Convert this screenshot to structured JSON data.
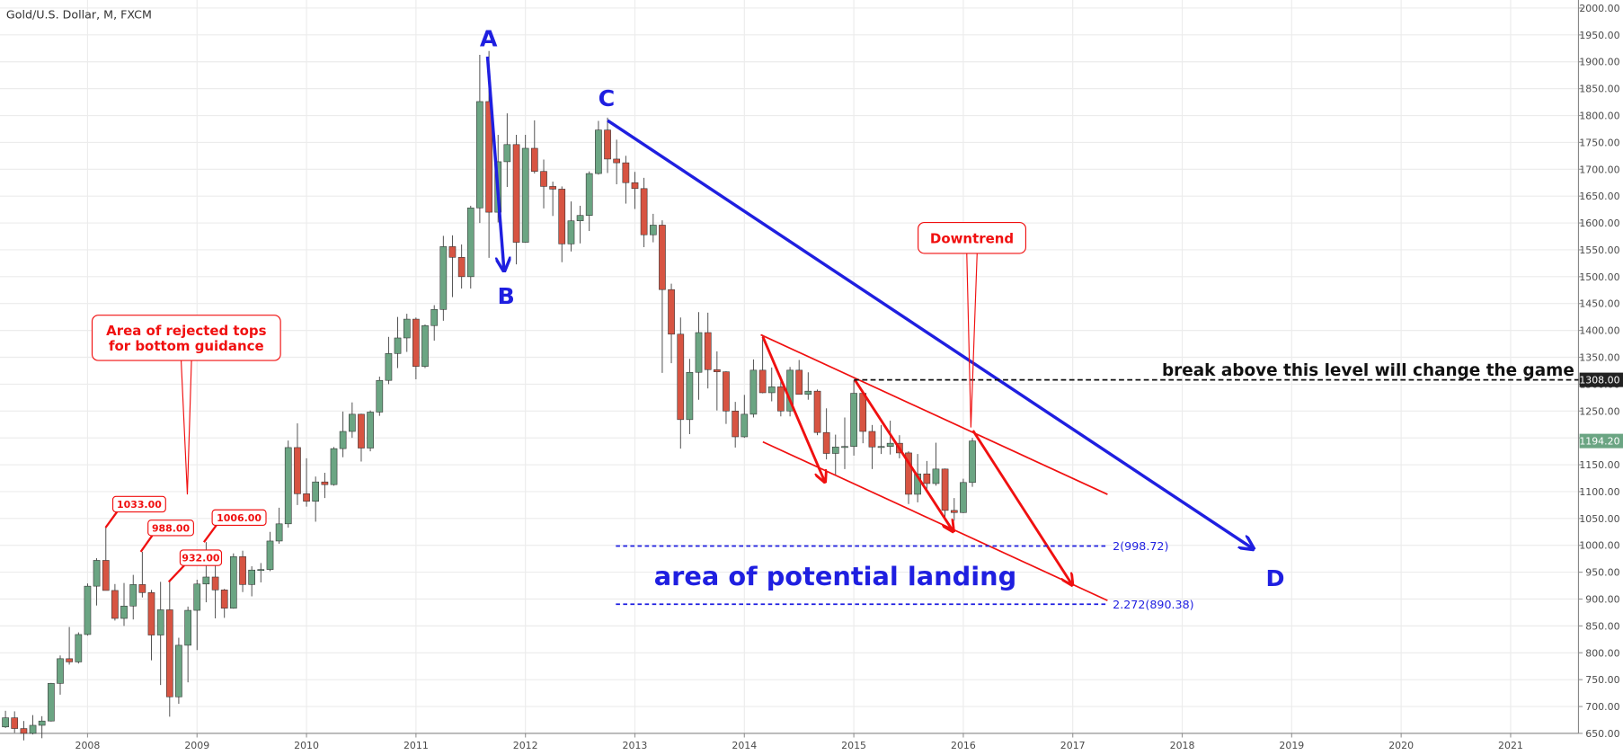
{
  "chart_data": {
    "type": "candlestick",
    "title": "Gold/U.S. Dollar, M, FXCM",
    "up_color": "#6ba583",
    "down_color": "#d75442",
    "grid": true,
    "xlim": [
      2007.2,
      2021.62
    ],
    "ylim": [
      650,
      2015
    ],
    "xticks": [
      2008,
      2009,
      2010,
      2011,
      2012,
      2013,
      2014,
      2015,
      2016,
      2017,
      2018,
      2019,
      2020,
      2021
    ],
    "yticks": [
      {
        "value": 650,
        "label": "650.00"
      },
      {
        "value": 700,
        "label": "700.00"
      },
      {
        "value": 750,
        "label": "750.00"
      },
      {
        "value": 800,
        "label": "800.00"
      },
      {
        "value": 850,
        "label": "850.00"
      },
      {
        "value": 900,
        "label": "900.00"
      },
      {
        "value": 950,
        "label": "950.00"
      },
      {
        "value": 1000,
        "label": "1000.00"
      },
      {
        "value": 1050,
        "label": "1050.00"
      },
      {
        "value": 1100,
        "label": "1100.00"
      },
      {
        "value": 1150,
        "label": "1150.00"
      },
      {
        "value": 1200,
        "label": "1200.00"
      },
      {
        "value": 1250,
        "label": "1250.00"
      },
      {
        "value": 1300,
        "label": "1300.00"
      },
      {
        "value": 1350,
        "label": "1350.00"
      },
      {
        "value": 1400,
        "label": "1400.00"
      },
      {
        "value": 1450,
        "label": "1450.00"
      },
      {
        "value": 1500,
        "label": "1500.00"
      },
      {
        "value": 1550,
        "label": "1550.00"
      },
      {
        "value": 1600,
        "label": "1600.00"
      },
      {
        "value": 1650,
        "label": "1650.00"
      },
      {
        "value": 1700,
        "label": "1700.00"
      },
      {
        "value": 1750,
        "label": "1750.00"
      },
      {
        "value": 1800,
        "label": "1800.00"
      },
      {
        "value": 1850,
        "label": "1850.00"
      },
      {
        "value": 1900,
        "label": "1900.00"
      },
      {
        "value": 1950,
        "label": "1950.00"
      },
      {
        "value": 2000,
        "label": "2000.00"
      }
    ],
    "x": [
      2007.25,
      2007.333,
      2007.417,
      2007.5,
      2007.583,
      2007.667,
      2007.75,
      2007.833,
      2007.917,
      2008.0,
      2008.083,
      2008.167,
      2008.25,
      2008.333,
      2008.417,
      2008.5,
      2008.583,
      2008.667,
      2008.75,
      2008.833,
      2008.917,
      2009.0,
      2009.083,
      2009.167,
      2009.25,
      2009.333,
      2009.417,
      2009.5,
      2009.583,
      2009.667,
      2009.75,
      2009.833,
      2009.917,
      2010.0,
      2010.083,
      2010.167,
      2010.25,
      2010.333,
      2010.417,
      2010.5,
      2010.583,
      2010.667,
      2010.75,
      2010.833,
      2010.917,
      2011.0,
      2011.083,
      2011.167,
      2011.25,
      2011.333,
      2011.417,
      2011.5,
      2011.583,
      2011.667,
      2011.75,
      2011.833,
      2011.917,
      2012.0,
      2012.083,
      2012.167,
      2012.25,
      2012.333,
      2012.417,
      2012.5,
      2012.583,
      2012.667,
      2012.75,
      2012.833,
      2012.917,
      2013.0,
      2013.083,
      2013.167,
      2013.25,
      2013.333,
      2013.417,
      2013.5,
      2013.583,
      2013.667,
      2013.75,
      2013.833,
      2013.917,
      2014.0,
      2014.083,
      2014.167,
      2014.25,
      2014.333,
      2014.417,
      2014.5,
      2014.583,
      2014.667,
      2014.75,
      2014.833,
      2014.917,
      2015.0,
      2015.083,
      2015.167,
      2015.25,
      2015.333,
      2015.417,
      2015.5,
      2015.583,
      2015.667,
      2015.75,
      2015.833,
      2015.917,
      2016.0,
      2016.083
    ],
    "open": [
      662,
      679,
      659,
      650,
      665,
      673,
      743,
      789,
      783,
      834,
      924,
      972,
      916,
      864,
      887,
      927,
      912,
      833,
      880,
      718,
      814,
      879,
      928,
      941,
      917,
      883,
      979,
      927,
      954,
      955,
      1008,
      1040,
      1182,
      1096,
      1082,
      1118,
      1113,
      1180,
      1212,
      1244,
      1181,
      1248,
      1307,
      1357,
      1386,
      1421,
      1333,
      1409,
      1439,
      1556,
      1536,
      1500,
      1628,
      1826,
      1620,
      1714,
      1746,
      1564,
      1739,
      1696,
      1668,
      1663,
      1561,
      1604,
      1614,
      1692,
      1773,
      1719,
      1712,
      1675,
      1664,
      1578,
      1596,
      1476,
      1393,
      1234,
      1322,
      1396,
      1327,
      1323,
      1250,
      1202,
      1244,
      1326,
      1284,
      1295,
      1250,
      1326,
      1281,
      1287,
      1210,
      1171,
      1183,
      1184,
      1283,
      1212,
      1183,
      1184,
      1190,
      1172,
      1095,
      1133,
      1115,
      1142,
      1065,
      1061,
      1117
    ],
    "high": [
      692,
      691,
      673,
      684,
      682,
      744,
      795,
      848,
      838,
      929,
      976,
      1033,
      928,
      930,
      945,
      988,
      917,
      932,
      935,
      828,
      886,
      936,
      1006,
      965,
      919,
      985,
      990,
      961,
      967,
      1025,
      1070,
      1195,
      1227,
      1162,
      1128,
      1135,
      1183,
      1249,
      1266,
      1245,
      1251,
      1314,
      1388,
      1425,
      1431,
      1424,
      1411,
      1447,
      1576,
      1577,
      1560,
      1632,
      1913,
      1920,
      1764,
      1804,
      1764,
      1764,
      1791,
      1718,
      1677,
      1668,
      1640,
      1632,
      1696,
      1790,
      1796,
      1755,
      1725,
      1695,
      1684,
      1617,
      1605,
      1487,
      1424,
      1347,
      1434,
      1433,
      1361,
      1324,
      1267,
      1280,
      1346,
      1392,
      1331,
      1315,
      1332,
      1345,
      1322,
      1290,
      1255,
      1206,
      1238,
      1307,
      1287,
      1224,
      1224,
      1232,
      1205,
      1175,
      1170,
      1157,
      1191,
      1143,
      1088,
      1124,
      1200
    ],
    "low": [
      660,
      651,
      637,
      648,
      641,
      672,
      722,
      778,
      780,
      832,
      888,
      918,
      860,
      850,
      862,
      903,
      786,
      740,
      681,
      705,
      745,
      805,
      894,
      864,
      865,
      882,
      913,
      905,
      931,
      952,
      1003,
      1033,
      1075,
      1072,
      1044,
      1088,
      1111,
      1164,
      1200,
      1156,
      1175,
      1241,
      1300,
      1330,
      1360,
      1309,
      1330,
      1381,
      1418,
      1462,
      1478,
      1478,
      1600,
      1535,
      1601,
      1667,
      1523,
      1563,
      1692,
      1627,
      1613,
      1527,
      1547,
      1562,
      1585,
      1690,
      1693,
      1672,
      1636,
      1626,
      1555,
      1564,
      1321,
      1339,
      1180,
      1207,
      1271,
      1292,
      1251,
      1226,
      1182,
      1200,
      1238,
      1283,
      1268,
      1240,
      1240,
      1281,
      1271,
      1205,
      1160,
      1131,
      1142,
      1167,
      1190,
      1142,
      1170,
      1169,
      1162,
      1077,
      1080,
      1098,
      1111,
      1052,
      1046,
      1060,
      1109
    ],
    "close": [
      679,
      659,
      650,
      665,
      673,
      743,
      789,
      783,
      834,
      924,
      972,
      916,
      864,
      887,
      927,
      912,
      833,
      880,
      718,
      814,
      879,
      928,
      941,
      917,
      883,
      979,
      927,
      954,
      955,
      1008,
      1040,
      1182,
      1096,
      1082,
      1118,
      1113,
      1180,
      1212,
      1244,
      1181,
      1248,
      1307,
      1357,
      1386,
      1421,
      1333,
      1409,
      1439,
      1556,
      1536,
      1500,
      1628,
      1826,
      1620,
      1714,
      1746,
      1564,
      1739,
      1696,
      1668,
      1663,
      1561,
      1604,
      1614,
      1692,
      1773,
      1719,
      1712,
      1675,
      1664,
      1578,
      1596,
      1476,
      1393,
      1234,
      1322,
      1396,
      1327,
      1323,
      1250,
      1202,
      1244,
      1326,
      1284,
      1295,
      1250,
      1326,
      1281,
      1287,
      1210,
      1171,
      1183,
      1184,
      1283,
      1212,
      1183,
      1184,
      1190,
      1172,
      1095,
      1133,
      1115,
      1142,
      1065,
      1061,
      1117,
      1194.2
    ],
    "points": [
      "A",
      "B",
      "C",
      "D"
    ],
    "callouts": [
      {
        "lines": [
          "Area of rejected tops",
          "for bottom guidance"
        ]
      },
      {
        "lines": [
          "Downtrend"
        ]
      }
    ],
    "price_labels": [
      {
        "value": 1033,
        "label": "1033.00"
      },
      {
        "value": 988,
        "label": "988.00"
      },
      {
        "value": 1006,
        "label": "1006.00"
      },
      {
        "value": 932,
        "label": "932.00"
      }
    ],
    "level": {
      "value": 1308,
      "label": "1308.00",
      "text": "break above this level will change the game"
    },
    "last_price": {
      "value": 1194.2,
      "label": "1194.20"
    },
    "fib_levels": [
      {
        "value": 998.72,
        "label": "2(998.72)"
      },
      {
        "value": 890.38,
        "label": "2.272(890.38)"
      }
    ],
    "target_text": "area of potential landing"
  }
}
